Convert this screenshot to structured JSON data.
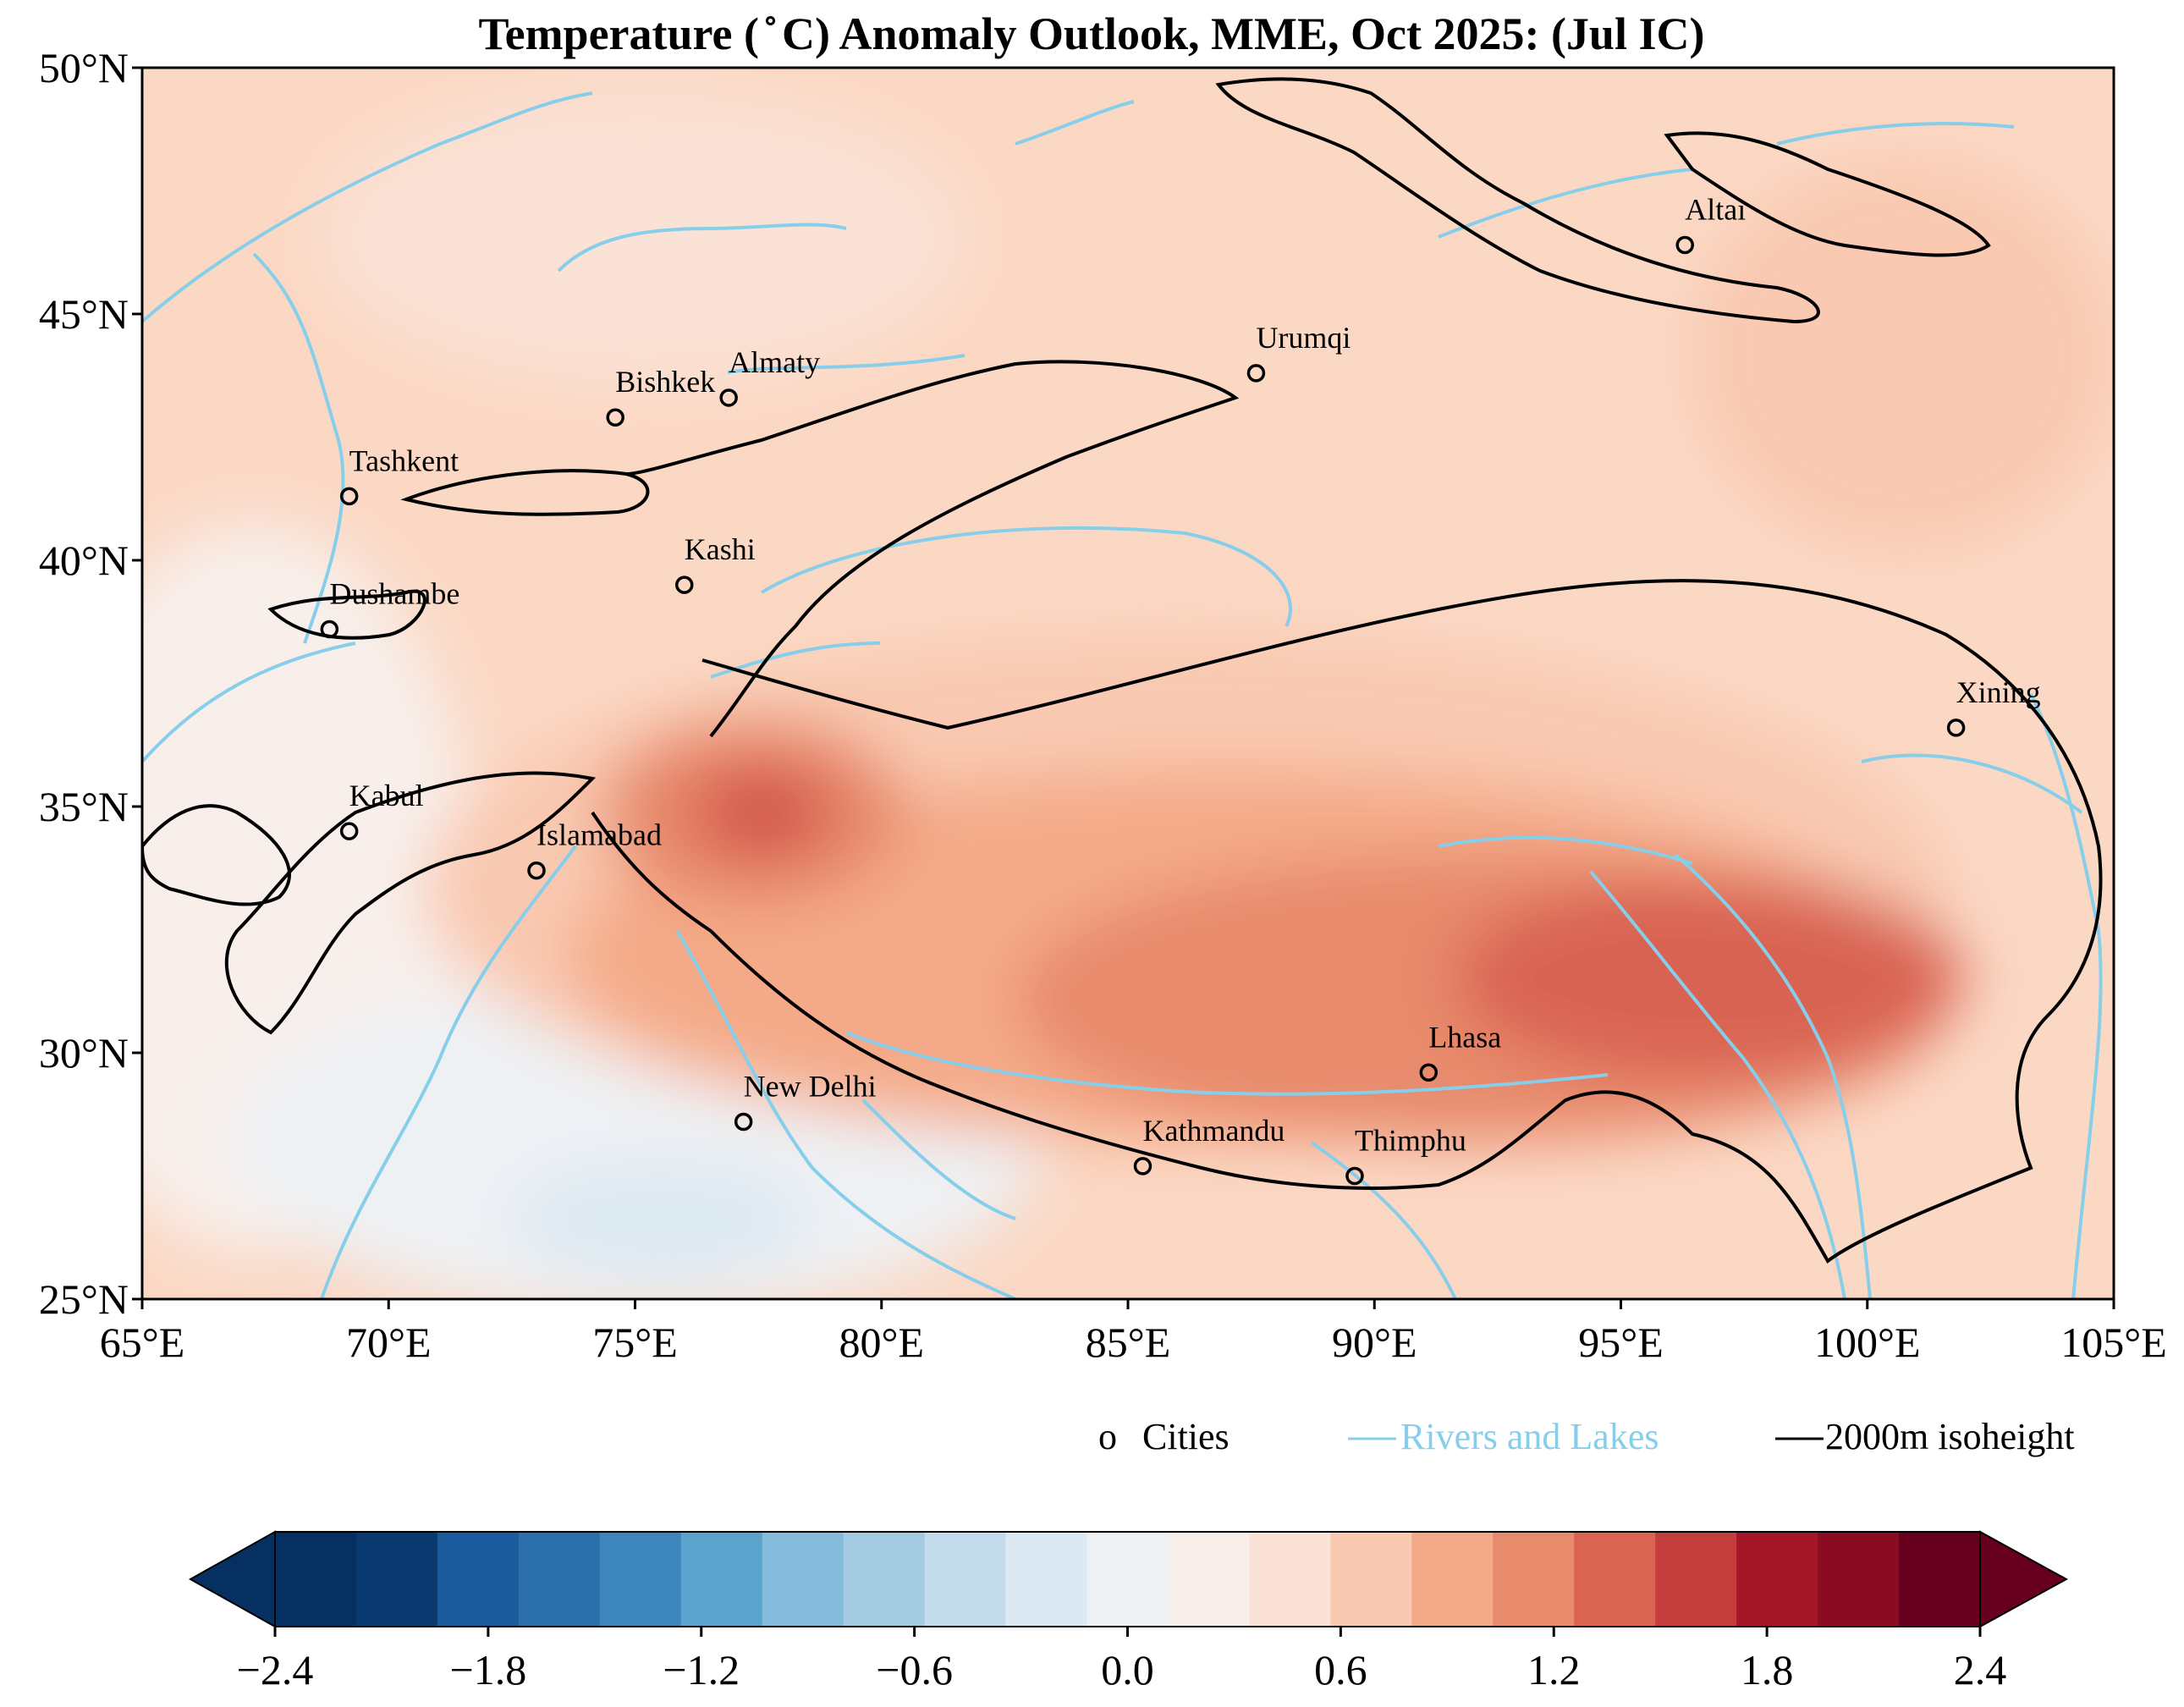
{
  "title": "Temperature ($^\\circ$C) Anomaly Outlook, MME, Oct  2025:  (Jul IC)",
  "title_display": "Temperature ( ̊ C) Anomaly Outlook, MME, Oct  2025:  (Jul IC)",
  "map": {
    "lon_range": [
      65,
      105
    ],
    "lat_range": [
      25,
      50
    ],
    "x_ticks": [
      {
        "value": 65,
        "label": "65°E"
      },
      {
        "value": 70,
        "label": "70°E"
      },
      {
        "value": 75,
        "label": "75°E"
      },
      {
        "value": 80,
        "label": "80°E"
      },
      {
        "value": 85,
        "label": "85°E"
      },
      {
        "value": 90,
        "label": "90°E"
      },
      {
        "value": 95,
        "label": "95°E"
      },
      {
        "value": 100,
        "label": "100°E"
      },
      {
        "value": 105,
        "label": "105°E"
      }
    ],
    "y_ticks": [
      {
        "value": 25,
        "label": "25°N"
      },
      {
        "value": 30,
        "label": "30°N"
      },
      {
        "value": 35,
        "label": "35°N"
      },
      {
        "value": 40,
        "label": "40°N"
      },
      {
        "value": 45,
        "label": "45°N"
      },
      {
        "value": 50,
        "label": "50°N"
      }
    ],
    "cities": [
      {
        "name": "Altai",
        "lon": 96.3,
        "lat": 46.4
      },
      {
        "name": "Urumqi",
        "lon": 87.6,
        "lat": 43.8
      },
      {
        "name": "Almaty",
        "lon": 76.9,
        "lat": 43.3
      },
      {
        "name": "Bishkek",
        "lon": 74.6,
        "lat": 42.9
      },
      {
        "name": "Tashkent",
        "lon": 69.2,
        "lat": 41.3
      },
      {
        "name": "Kashi",
        "lon": 76.0,
        "lat": 39.5
      },
      {
        "name": "Dushambe",
        "lon": 68.8,
        "lat": 38.6
      },
      {
        "name": "Xining",
        "lon": 101.8,
        "lat": 36.6
      },
      {
        "name": "Kabul",
        "lon": 69.2,
        "lat": 34.5
      },
      {
        "name": "Islamabad",
        "lon": 73.0,
        "lat": 33.7
      },
      {
        "name": "Lhasa",
        "lon": 91.1,
        "lat": 29.6
      },
      {
        "name": "New Delhi",
        "lon": 77.2,
        "lat": 28.6
      },
      {
        "name": "Kathmandu",
        "lon": 85.3,
        "lat": 27.7
      },
      {
        "name": "Thimphu",
        "lon": 89.6,
        "lat": 27.5
      }
    ]
  },
  "legend": {
    "cities_marker": "o",
    "cities_label": "Cities",
    "rivers_label": "Rivers and Lakes",
    "isoheight_label": "2000m isoheight"
  },
  "colorbar": {
    "ticks": [
      "−2.4",
      "−1.8",
      "−1.2",
      "−0.6",
      "0.0",
      "0.6",
      "1.2",
      "1.8",
      "2.4"
    ],
    "levels": [
      -2.4,
      -2.1,
      -1.8,
      -1.5,
      -1.2,
      -0.9,
      -0.6,
      -0.3,
      0.0,
      0.3,
      0.6,
      0.9,
      1.2,
      1.5,
      1.8,
      2.1,
      2.4
    ],
    "colors": [
      "#053061",
      "#0a3a70",
      "#1b5a9c",
      "#2c6fad",
      "#3d86bd",
      "#5ba2cd",
      "#85bbda",
      "#a5cbe2",
      "#c3dbea",
      "#dde9f2",
      "#eef1f4",
      "#f8efeb",
      "#fbe2d6",
      "#f9c9b1",
      "#f4aa88",
      "#e88a6c",
      "#d96452",
      "#c43d3d",
      "#a51628",
      "#8a0c22",
      "#67001f"
    ],
    "under_color": "#053061",
    "over_color": "#67001f"
  },
  "colors": {
    "rivers": "#87ceeb",
    "isoheight": "#000000",
    "background_field": "#fbd8c4"
  }
}
